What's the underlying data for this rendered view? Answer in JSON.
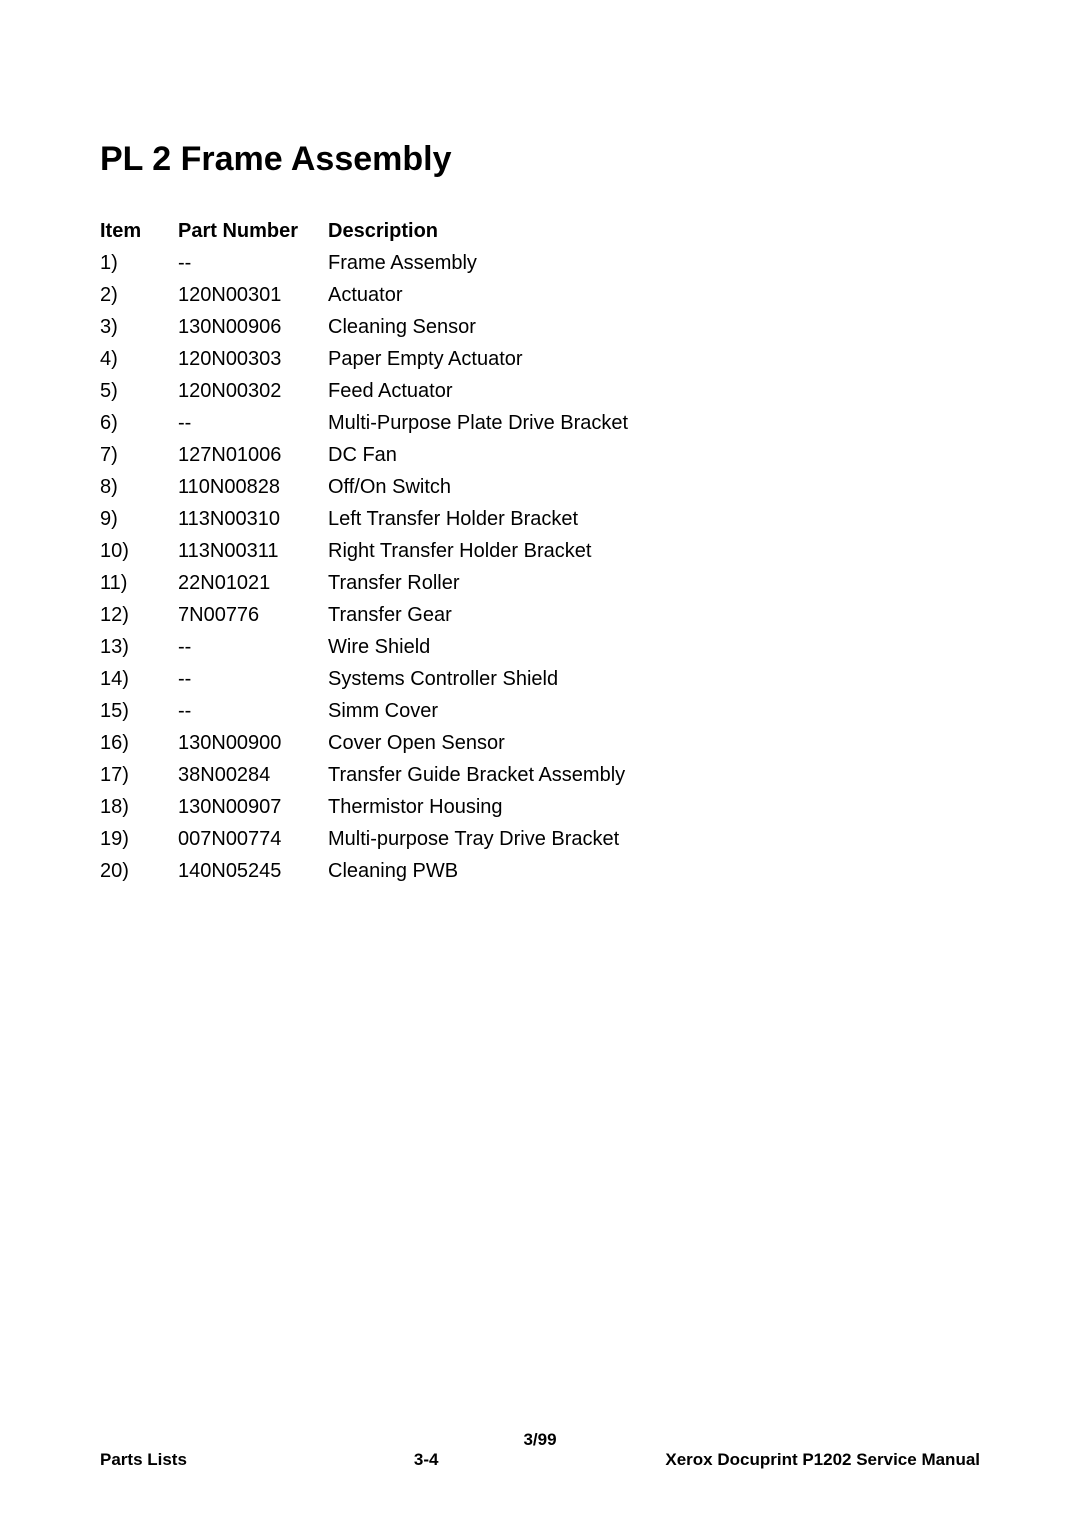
{
  "title": "PL 2  Frame Assembly",
  "columns": {
    "item": "Item",
    "part": "Part Number",
    "desc": "Description"
  },
  "rows": [
    {
      "item": "1)",
      "part": "--",
      "desc": "Frame Assembly"
    },
    {
      "item": "2)",
      "part": "120N00301",
      "desc": "Actuator"
    },
    {
      "item": "3)",
      "part": "130N00906",
      "desc": "Cleaning Sensor"
    },
    {
      "item": "4)",
      "part": "120N00303",
      "desc": "Paper Empty Actuator"
    },
    {
      "item": "5)",
      "part": "120N00302",
      "desc": "Feed Actuator"
    },
    {
      "item": "6)",
      "part": "--",
      "desc": "Multi-Purpose Plate Drive Bracket"
    },
    {
      "item": "7)",
      "part": "127N01006",
      "desc": "DC Fan"
    },
    {
      "item": "8)",
      "part": "110N00828",
      "desc": "Off/On Switch"
    },
    {
      "item": "9)",
      "part": "113N00310",
      "desc": "Left Transfer Holder Bracket"
    },
    {
      "item": "10)",
      "part": "113N00311",
      "desc": "Right Transfer Holder Bracket"
    },
    {
      "item": "11)",
      "part": "22N01021",
      "desc": "Transfer Roller"
    },
    {
      "item": "12)",
      "part": "7N00776",
      "desc": "Transfer Gear"
    },
    {
      "item": "13)",
      "part": "--",
      "desc": "Wire Shield"
    },
    {
      "item": "14)",
      "part": "--",
      "desc": "Systems Controller Shield"
    },
    {
      "item": "15)",
      "part": "--",
      "desc": "Simm Cover"
    },
    {
      "item": "16)",
      "part": "130N00900",
      "desc": "Cover Open Sensor"
    },
    {
      "item": "17)",
      "part": "38N00284",
      "desc": "Transfer Guide Bracket Assembly"
    },
    {
      "item": "18)",
      "part": "130N00907",
      "desc": "Thermistor Housing"
    },
    {
      "item": "19)",
      "part": "007N00774",
      "desc": "Multi-purpose Tray Drive Bracket"
    },
    {
      "item": "20)",
      "part": "140N05245",
      "desc": "Cleaning PWB"
    }
  ],
  "footer": {
    "date": "3/99",
    "left": "Parts Lists",
    "center": "3-4",
    "right": "Xerox Docuprint P1202 Service Manual"
  }
}
